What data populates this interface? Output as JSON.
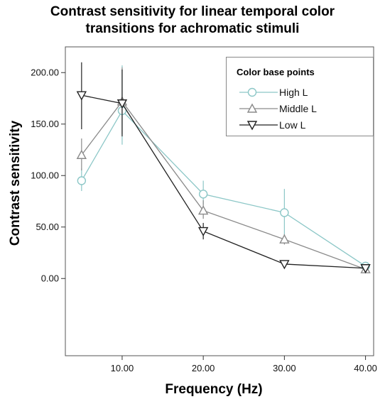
{
  "chart_data": {
    "type": "line",
    "title_line1": "Contrast sensitivity for linear temporal color",
    "title_line2": "transitions for achromatic stimuli",
    "xlabel": "Frequency (Hz)",
    "ylabel": "Contrast sensitivity",
    "xlim": [
      3,
      41
    ],
    "ylim": [
      -75,
      225
    ],
    "xticks": [
      10,
      20,
      30,
      40
    ],
    "xtick_labels": [
      "10.00",
      "20.00",
      "30.00",
      "40.00"
    ],
    "yticks": [
      0,
      50,
      100,
      150,
      200
    ],
    "ytick_labels": [
      "0.00",
      "50.00",
      "100.00",
      "150.00",
      "200.00"
    ],
    "grid": false,
    "legend_title": "Color base points",
    "legend_position": "top-right",
    "series": [
      {
        "name": "High L",
        "color": "#8cc7c7",
        "marker": "circle",
        "x": [
          5,
          10,
          20,
          30,
          40
        ],
        "y": [
          95,
          163,
          82,
          64,
          12
        ],
        "err_low": [
          85,
          130,
          72,
          40,
          8
        ],
        "err_high": [
          107,
          207,
          95,
          87,
          16
        ]
      },
      {
        "name": "Middle L",
        "color": "#8a8a8a",
        "marker": "triangle-up",
        "x": [
          5,
          10,
          20,
          30,
          40
        ],
        "y": [
          120,
          172,
          66,
          38,
          9
        ],
        "err_low": [
          105,
          140,
          58,
          33,
          6
        ],
        "err_high": [
          136,
          205,
          76,
          43,
          12
        ]
      },
      {
        "name": "Low L",
        "color": "#222222",
        "marker": "triangle-down",
        "x": [
          5,
          10,
          20,
          30,
          40
        ],
        "y": [
          178,
          170,
          46,
          14,
          10
        ],
        "err_low": [
          145,
          138,
          38,
          12,
          8
        ],
        "err_high": [
          210,
          203,
          54,
          16,
          12
        ]
      }
    ]
  }
}
